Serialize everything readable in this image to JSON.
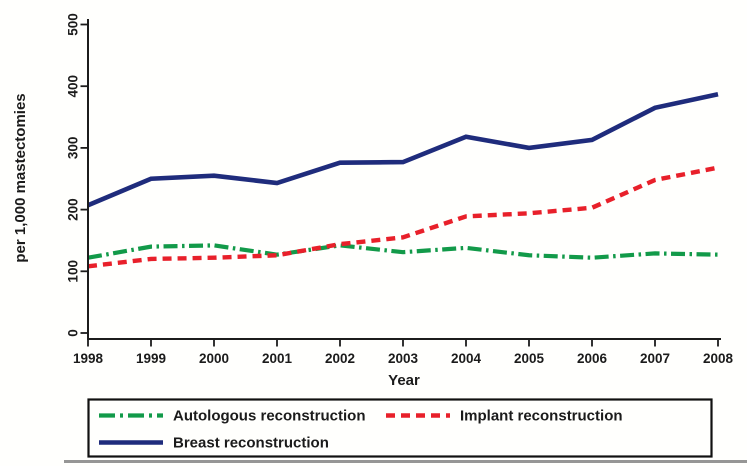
{
  "chart_data": {
    "type": "line",
    "title": "",
    "xlabel": "Year",
    "ylabel": "per 1,000 mastectomies",
    "x": [
      1998,
      1999,
      2000,
      2001,
      2002,
      2003,
      2004,
      2005,
      2006,
      2007,
      2008
    ],
    "ylim": [
      0,
      500
    ],
    "yticks": [
      0,
      100,
      200,
      300,
      400,
      500
    ],
    "grid": false,
    "legend_position": "bottom-box",
    "series": [
      {
        "name": "Autologous reconstruction",
        "color": "#129a49",
        "style": "dash-dot",
        "values": [
          122,
          140,
          142,
          127,
          142,
          131,
          138,
          126,
          122,
          129,
          127
        ]
      },
      {
        "name": "Implant reconstruction",
        "color": "#e8202a",
        "style": "dashed",
        "values": [
          108,
          120,
          122,
          126,
          144,
          155,
          189,
          194,
          203,
          248,
          268
        ]
      },
      {
        "name": "Breast reconstruction",
        "color": "#1f2c7c",
        "style": "solid",
        "values": [
          207,
          250,
          255,
          243,
          276,
          277,
          318,
          300,
          313,
          365,
          387
        ]
      }
    ],
    "colors": {
      "axis": "#1c1c1c",
      "text": "#1b1b1b",
      "background": "#fffffd",
      "scan_shadow": "#6a6a6a"
    }
  }
}
